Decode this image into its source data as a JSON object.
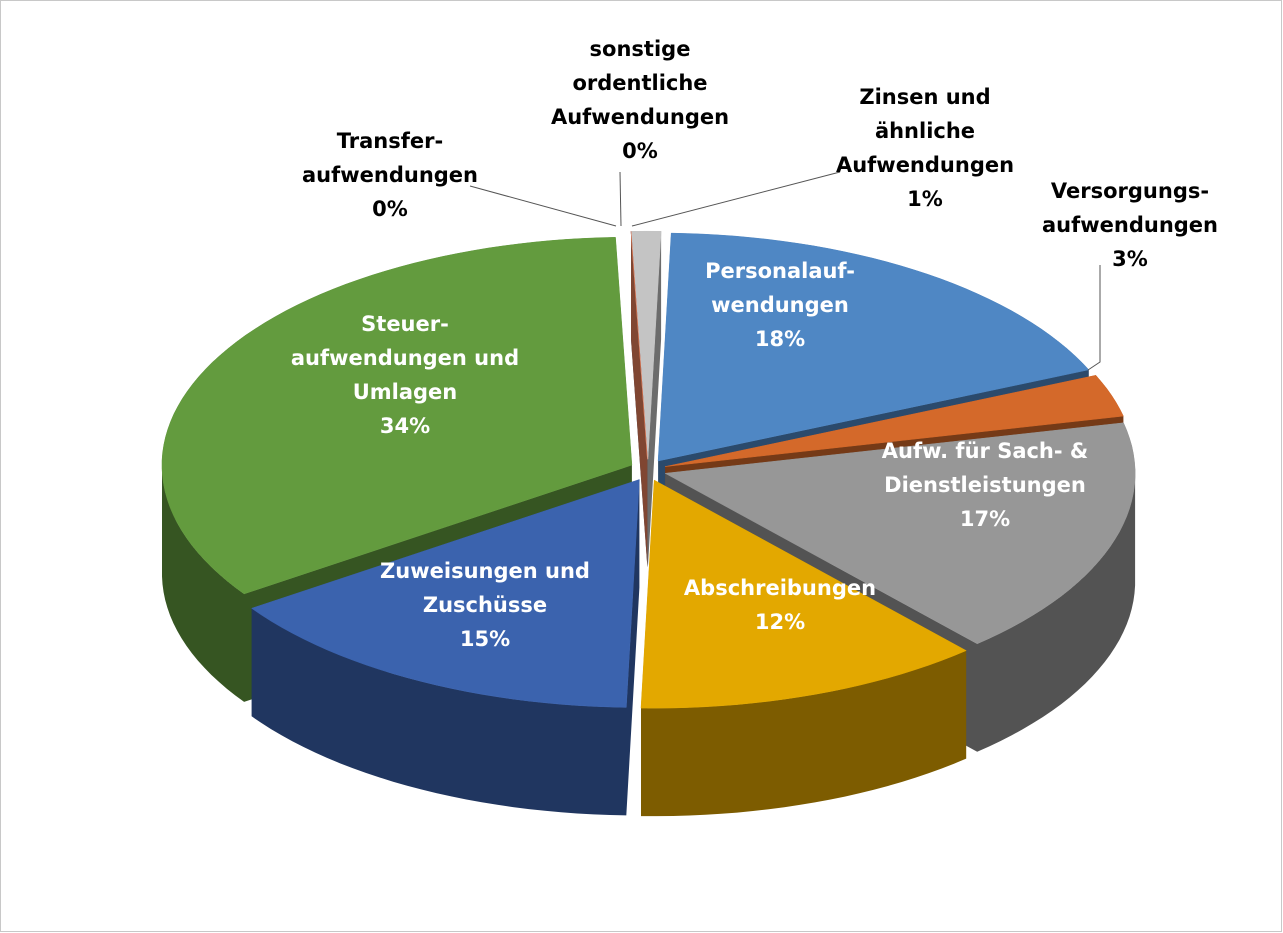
{
  "chart_data": {
    "type": "pie",
    "categories": [
      "Transfer-\naufwendungen",
      "sonstige\nordentliche\nAufwendungen",
      "Zinsen und\nähnliche\nAufwendungen",
      "Personalauf-\nwendungen",
      "Versorgungs-\naufwendungen",
      "Aufw. für Sach- &\nDienstleistungen",
      "Abschreibungen",
      "Zuweisungen und\nZuschüsse",
      "Steuer-\naufwendungen und\nUmlagen"
    ],
    "values": [
      0,
      0,
      1,
      18,
      3,
      17,
      12,
      15,
      34
    ],
    "value_labels": [
      "0%",
      "0%",
      "1%",
      "18%",
      "3%",
      "17%",
      "12%",
      "15%",
      "34%"
    ],
    "colors": [
      "#5b7fb8",
      "#e8805a",
      "#c4c4c4",
      "#4f87c4",
      "#d4692a",
      "#979797",
      "#e3a800",
      "#3b63ae",
      "#639b3e"
    ]
  }
}
